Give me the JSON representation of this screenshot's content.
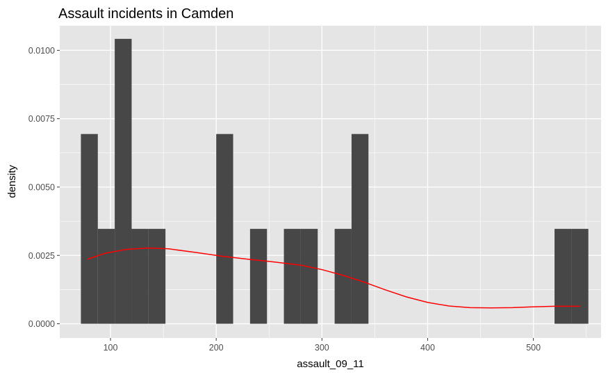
{
  "chart_data": {
    "type": "histogram",
    "title": "Assault incidents in Camden",
    "xlabel": "assault_09_11",
    "ylabel": "density",
    "xlim": [
      52,
      564
    ],
    "ylim": [
      -0.00052,
      0.0109
    ],
    "x_ticks": [
      100,
      200,
      300,
      400,
      500
    ],
    "y_ticks": [
      0.0,
      0.0025,
      0.005,
      0.0075,
      0.01
    ],
    "y_tick_labels": [
      "0.0000",
      "0.0025",
      "0.0050",
      "0.0075",
      "0.0100"
    ],
    "grid": true,
    "bar_color": "#474747",
    "panel_color": "#e5e5e5",
    "grid_color": "#ffffff",
    "bins": [
      {
        "x0": 72,
        "x1": 88,
        "density": 0.00694
      },
      {
        "x0": 88,
        "x1": 104,
        "density": 0.00347
      },
      {
        "x0": 104,
        "x1": 120,
        "density": 0.01042
      },
      {
        "x0": 120,
        "x1": 136,
        "density": 0.00347
      },
      {
        "x0": 136,
        "x1": 152,
        "density": 0.00347
      },
      {
        "x0": 200,
        "x1": 216,
        "density": 0.00694
      },
      {
        "x0": 232,
        "x1": 248,
        "density": 0.00347
      },
      {
        "x0": 264,
        "x1": 280,
        "density": 0.00347
      },
      {
        "x0": 280,
        "x1": 296,
        "density": 0.00347
      },
      {
        "x0": 312,
        "x1": 328,
        "density": 0.00347
      },
      {
        "x0": 328,
        "x1": 344,
        "density": 0.00694
      },
      {
        "x0": 520,
        "x1": 536,
        "density": 0.00347
      },
      {
        "x0": 536,
        "x1": 552,
        "density": 0.00347
      }
    ],
    "density_curve": {
      "color": "#ff0000",
      "points": [
        [
          78,
          0.00236
        ],
        [
          95,
          0.00258
        ],
        [
          115,
          0.00272
        ],
        [
          135,
          0.00277
        ],
        [
          155,
          0.00274
        ],
        [
          180,
          0.00261
        ],
        [
          205,
          0.00247
        ],
        [
          230,
          0.00236
        ],
        [
          255,
          0.00226
        ],
        [
          280,
          0.00214
        ],
        [
          300,
          0.00198
        ],
        [
          320,
          0.00177
        ],
        [
          340,
          0.00152
        ],
        [
          360,
          0.00124
        ],
        [
          380,
          0.00098
        ],
        [
          400,
          0.00078
        ],
        [
          420,
          0.00065
        ],
        [
          440,
          0.00059
        ],
        [
          460,
          0.00058
        ],
        [
          480,
          0.00059
        ],
        [
          500,
          0.00062
        ],
        [
          520,
          0.00064
        ],
        [
          544,
          0.00064
        ]
      ]
    }
  }
}
